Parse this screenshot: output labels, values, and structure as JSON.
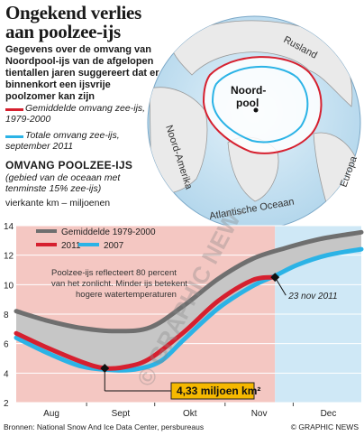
{
  "title": [
    "Ongekend verlies",
    "aan poolzee-ijs"
  ],
  "intro": "Gegevens over de omvang van Noordpool-ijs van de afgelopen tientallen jaren suggereert dat er binnenkort een ijsvrije poolzomer kan zijn",
  "map": {
    "label_pole": "Noord-\npool",
    "labels": {
      "russia": "Rusland",
      "north_america": "Noord-Amerika",
      "europe": "Europa",
      "atlantic": "Atlantische Oceaan"
    },
    "legend": [
      {
        "text": "Gemiddelde omvang zee-ijs, 1979-2000",
        "color": "#d6202f"
      },
      {
        "text": "Totale omvang zee-ijs, september 2011",
        "color": "#2bb3e6"
      }
    ]
  },
  "section": {
    "title": "OMVANG POOLZEE-IJS",
    "subtitle": "(gebied van de oceaan met tenminste 15% zee-ijs)",
    "units": "vierkante km – miljoenen"
  },
  "colors": {
    "avg": "#6f6f6f",
    "y2011": "#d6202f",
    "y2007": "#2bb3e6",
    "band": "#c6c6c6",
    "pink": "#f4c7c2",
    "blue": "#cfe8f6"
  },
  "chart_data": {
    "type": "line",
    "x_unit": "day-of-month",
    "xticks": [
      "Aug",
      "Sept",
      "Okt",
      "Nov",
      "Dec"
    ],
    "ylim": [
      2,
      14
    ],
    "yticks": [
      2,
      4,
      6,
      8,
      10,
      12,
      14
    ],
    "legend_placement": "top-left",
    "series": [
      {
        "name": "Gemiddelde 1979-2000",
        "points": [
          [
            1,
            8.2
          ],
          [
            15,
            7.55
          ],
          [
            30,
            7.05
          ],
          [
            45,
            6.85
          ],
          [
            60,
            7.1
          ],
          [
            75,
            8.6
          ],
          [
            90,
            10.4
          ],
          [
            105,
            11.75
          ],
          [
            120,
            12.5
          ],
          [
            135,
            13.1
          ],
          [
            153,
            13.55
          ]
        ]
      },
      {
        "name": "2011",
        "points": [
          [
            1,
            6.7
          ],
          [
            15,
            5.7
          ],
          [
            30,
            4.75
          ],
          [
            40,
            4.33
          ],
          [
            50,
            4.45
          ],
          [
            60,
            5.0
          ],
          [
            75,
            6.8
          ],
          [
            90,
            8.9
          ],
          [
            105,
            10.3
          ],
          [
            115,
            10.5
          ]
        ]
      },
      {
        "name": "2007",
        "points": [
          [
            1,
            6.4
          ],
          [
            15,
            5.35
          ],
          [
            30,
            4.45
          ],
          [
            45,
            4.2
          ],
          [
            55,
            4.3
          ],
          [
            65,
            4.85
          ],
          [
            75,
            6.3
          ],
          [
            90,
            8.4
          ],
          [
            105,
            9.9
          ],
          [
            115,
            10.6
          ],
          [
            125,
            11.35
          ],
          [
            138,
            12.0
          ],
          [
            153,
            12.4
          ]
        ]
      }
    ],
    "annotations": {
      "note": "Poolzee-ijs reflecteert 80 percent van het zonlicht. Minder ijs betekent hogere watertemperaturen",
      "min_label": "4,33 miljoen km²",
      "min_point": [
        40,
        4.33
      ],
      "end_label": "23 nov 2011",
      "end_point": [
        115,
        10.5
      ]
    }
  },
  "footer": {
    "source": "Bronnen: National Snow And Ice Data Center, persbureaus",
    "credit": "© GRAPHIC NEWS"
  }
}
